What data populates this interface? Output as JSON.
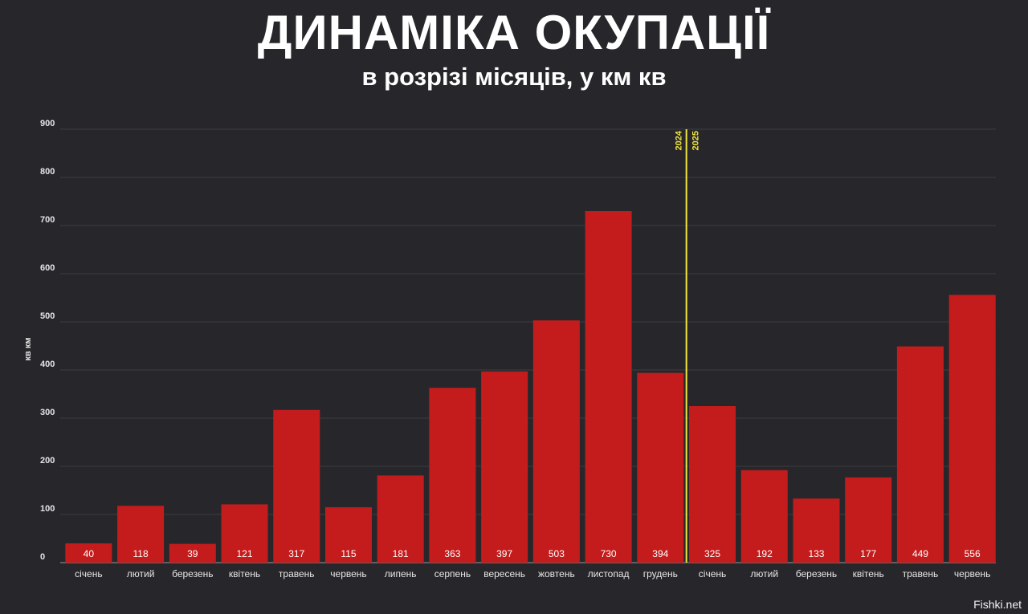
{
  "title": "ДИНАМІКА ОКУПАЦІЇ",
  "subtitle": "в розрізі місяців, у км кв",
  "watermark": "Fishki.net",
  "colors": {
    "bar": "#c41c1c",
    "background": "#27272b",
    "divider": "#f0e640",
    "grid": "#3d3d42"
  },
  "chart_data": {
    "type": "bar",
    "title": "ДИНАМІКА ОКУПАЦІЇ",
    "subtitle": "в розрізі місяців, у км кв",
    "ylabel": "кв км",
    "xlabel": "",
    "ylim": [
      0,
      900
    ],
    "yticks": [
      0,
      100,
      200,
      300,
      400,
      500,
      600,
      700,
      800,
      900
    ],
    "grid": true,
    "categories": [
      "січень",
      "лютий",
      "березень",
      "квітень",
      "травень",
      "червень",
      "липень",
      "серпень",
      "вересень",
      "жовтень",
      "листопад",
      "грудень",
      "січень",
      "лютий",
      "березень",
      "квітень",
      "травень",
      "червень"
    ],
    "values": [
      40,
      118,
      39,
      121,
      317,
      115,
      181,
      363,
      397,
      503,
      730,
      394,
      325,
      192,
      133,
      177,
      449,
      556
    ],
    "year_divider": {
      "after_index": 11,
      "left_label": "2024",
      "right_label": "2025"
    }
  }
}
